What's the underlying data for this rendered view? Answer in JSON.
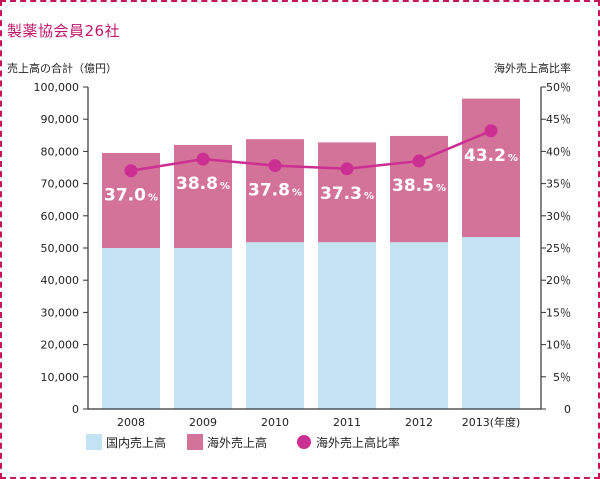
{
  "title": "製薬協会員26社",
  "chart_data": {
    "type": "bar",
    "stacked": true,
    "categories": [
      "2008",
      "2009",
      "2010",
      "2011",
      "2012",
      "2013"
    ],
    "x_unit": "(年度)",
    "series": [
      {
        "name": "国内売上高",
        "values": [
          50000,
          50000,
          51800,
          51800,
          51800,
          53400
        ],
        "color": "#c3e3f3"
      },
      {
        "name": "海外売上高",
        "values": [
          29500,
          32000,
          32000,
          31000,
          33000,
          43000
        ],
        "color": "#d4739a"
      }
    ],
    "line_series": {
      "name": "海外売上高比率",
      "values": [
        37.0,
        38.8,
        37.8,
        37.3,
        38.5,
        43.2
      ],
      "labels": [
        "37.0",
        "38.8",
        "37.8",
        "37.3",
        "38.5",
        "43.2"
      ],
      "suffix": "%",
      "color": "#cc2f92"
    },
    "ylabel_left": "売上高の合計（億円）",
    "ylabel_right": "海外売上高比率",
    "ylim_left": [
      0,
      100000
    ],
    "yticks_left": [
      "0",
      "10,000",
      "20,000",
      "30,000",
      "40,000",
      "50,000",
      "60,000",
      "70,000",
      "80,000",
      "90,000",
      "100,000"
    ],
    "ylim_right": [
      0,
      50
    ],
    "yticks_right": [
      "0",
      "5％",
      "10％",
      "15％",
      "20％",
      "25％",
      "30％",
      "35％",
      "40％",
      "45％",
      "50％"
    ],
    "legend": [
      "国内売上高",
      "海外売上高",
      "海外売上高比率"
    ],
    "legend_position": "bottom"
  }
}
